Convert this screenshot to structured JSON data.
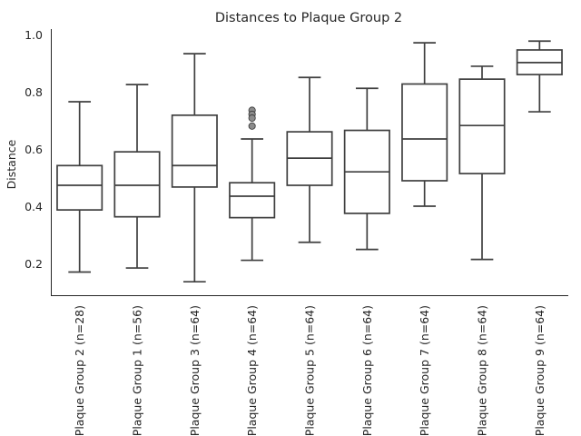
{
  "chart_data": {
    "type": "box",
    "title": "Distances to Plaque Group 2",
    "xlabel": "",
    "ylabel": "Distance",
    "ylim": [
      0.09,
      1.02
    ],
    "yticks": [
      "0.2",
      "0.4",
      "0.6",
      "0.8",
      "1.0"
    ],
    "grid": false,
    "legend": "none",
    "colors": {
      "box_stroke": "#3f3f3f",
      "box_fill": "#ffffff",
      "outlier_fill": "#8c8c8c"
    },
    "categories": [
      "Plaque Group 2 (n=28)",
      "Plaque Group 1 (n=56)",
      "Plaque Group 3 (n=64)",
      "Plaque Group 4 (n=64)",
      "Plaque Group 5 (n=64)",
      "Plaque Group 6 (n=64)",
      "Plaque Group 7 (n=64)",
      "Plaque Group 8 (n=64)",
      "Plaque Group 9 (n=64)"
    ],
    "boxes": [
      {
        "min": 0.171,
        "q1": 0.388,
        "median": 0.474,
        "q3": 0.543,
        "max": 0.766,
        "outliers": []
      },
      {
        "min": 0.185,
        "q1": 0.364,
        "median": 0.474,
        "q3": 0.591,
        "max": 0.826,
        "outliers": []
      },
      {
        "min": 0.137,
        "q1": 0.468,
        "median": 0.543,
        "q3": 0.719,
        "max": 0.934,
        "outliers": []
      },
      {
        "min": 0.212,
        "q1": 0.361,
        "median": 0.436,
        "q3": 0.483,
        "max": 0.636,
        "outliers": [
          0.736,
          0.722,
          0.709,
          0.681
        ]
      },
      {
        "min": 0.275,
        "q1": 0.474,
        "median": 0.569,
        "q3": 0.661,
        "max": 0.851,
        "outliers": []
      },
      {
        "min": 0.25,
        "q1": 0.376,
        "median": 0.521,
        "q3": 0.666,
        "max": 0.813,
        "outliers": []
      },
      {
        "min": 0.401,
        "q1": 0.49,
        "median": 0.636,
        "q3": 0.828,
        "max": 0.972,
        "outliers": []
      },
      {
        "min": 0.215,
        "q1": 0.515,
        "median": 0.683,
        "q3": 0.845,
        "max": 0.89,
        "outliers": []
      },
      {
        "min": 0.731,
        "q1": 0.861,
        "median": 0.903,
        "q3": 0.947,
        "max": 0.978,
        "outliers": []
      }
    ]
  }
}
